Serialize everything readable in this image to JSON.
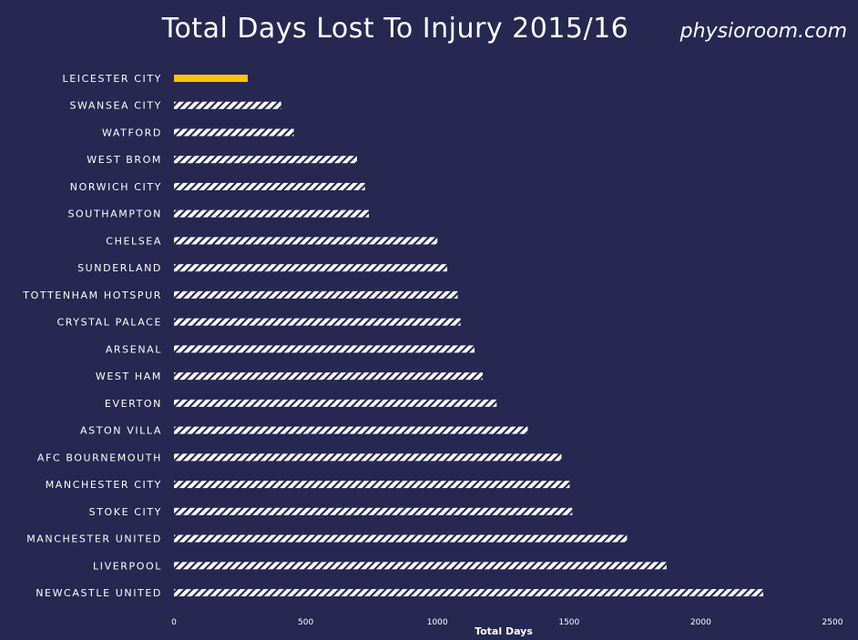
{
  "header": {
    "title": "Total Days Lost To Injury 2015/16",
    "brand": "physioroom.com"
  },
  "chart_data": {
    "type": "bar",
    "orientation": "horizontal",
    "title": "Total Days Lost To Injury 2015/16",
    "xlabel": "Total Days",
    "ylabel": "",
    "xlim": [
      0,
      2500
    ],
    "xticks": [
      0,
      500,
      1000,
      1500,
      2000,
      2500
    ],
    "grid": false,
    "legend": "none",
    "colors": {
      "background": "#262852",
      "highlight": "#ffc20e",
      "bar": "#ffffff",
      "text": "#ffffff"
    },
    "categories": [
      "LEICESTER CITY",
      "SWANSEA CITY",
      "WATFORD",
      "WEST BROM",
      "NORWICH CITY",
      "SOUTHAMPTON",
      "CHELSEA",
      "SUNDERLAND",
      "TOTTENHAM HOTSPUR",
      "CRYSTAL PALACE",
      "ARSENAL",
      "WEST HAM",
      "EVERTON",
      "ASTON VILLA",
      "AFC BOURNEMOUTH",
      "MANCHESTER CITY",
      "STOKE CITY",
      "MANCHESTER UNITED",
      "LIVERPOOL",
      "NEWCASTLE UNITED"
    ],
    "values": [
      280,
      407,
      455,
      695,
      725,
      740,
      1000,
      1037,
      1077,
      1088,
      1141,
      1172,
      1225,
      1343,
      1471,
      1502,
      1512,
      1720,
      1870,
      2237
    ],
    "highlight_index": 0
  }
}
